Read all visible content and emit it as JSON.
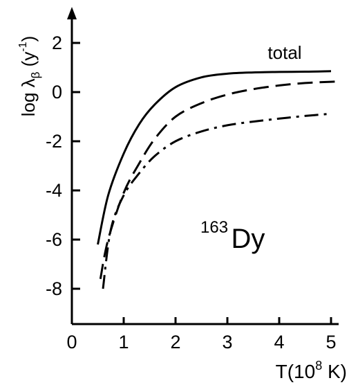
{
  "chart_data": {
    "type": "line",
    "title": "",
    "xlabel": {
      "main": "T(10",
      "sup": "8",
      "end": " K)"
    },
    "ylabel": {
      "main": "log λ",
      "sub": "β",
      "mid": " (y",
      "sup": "-1",
      "end": ")"
    },
    "xlim": [
      0,
      5.2
    ],
    "ylim": [
      -9.5,
      3.5
    ],
    "x_ticks": [
      0,
      1,
      2,
      3,
      4,
      5
    ],
    "x_tick_labels": [
      "0",
      "1",
      "2",
      "3",
      "4",
      "5"
    ],
    "y_ticks": [
      2,
      0,
      -2,
      -4,
      -6,
      -8
    ],
    "y_tick_labels": [
      "2",
      "0",
      "-2",
      "-4",
      "-6",
      "-8"
    ],
    "grid": false,
    "legend": "none",
    "annotation": {
      "sup": "163",
      "main": "Dy"
    },
    "series": [
      {
        "name": "total",
        "line_style": "solid",
        "x": [
          0.5,
          0.7,
          1.0,
          1.3,
          1.6,
          2.0,
          2.5,
          3.0,
          3.5,
          4.0,
          4.5,
          5.0
        ],
        "y": [
          -6.2,
          -4.2,
          -2.5,
          -1.3,
          -0.5,
          0.2,
          0.6,
          0.75,
          0.8,
          0.82,
          0.83,
          0.85
        ]
      },
      {
        "line_style": "dashed",
        "x": [
          0.55,
          0.7,
          1.0,
          1.3,
          1.6,
          2.0,
          2.5,
          3.0,
          3.5,
          4.0,
          4.5,
          5.0,
          5.2
        ],
        "y": [
          -7.6,
          -6.0,
          -4.1,
          -2.9,
          -1.9,
          -1.0,
          -0.45,
          -0.1,
          0.12,
          0.27,
          0.37,
          0.42,
          0.44
        ]
      },
      {
        "line_style": "dashdot",
        "x": [
          0.6,
          0.75,
          1.0,
          1.3,
          1.6,
          2.0,
          2.5,
          3.0,
          3.5,
          4.0,
          4.5,
          5.0
        ],
        "y": [
          -8.0,
          -5.6,
          -4.2,
          -3.3,
          -2.6,
          -2.0,
          -1.6,
          -1.35,
          -1.2,
          -1.08,
          -0.97,
          -0.88
        ]
      }
    ]
  }
}
